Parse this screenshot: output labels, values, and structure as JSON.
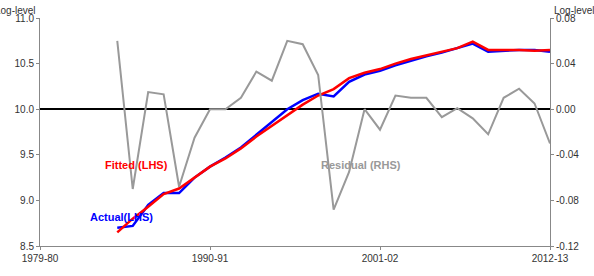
{
  "chart_data": {
    "type": "line",
    "y_label": "Log-level",
    "y2_label": "Log-level",
    "categories": [
      "1979-80",
      null,
      null,
      null,
      null,
      null,
      null,
      null,
      null,
      null,
      null,
      "1990-91",
      null,
      null,
      null,
      null,
      null,
      null,
      null,
      null,
      null,
      null,
      "2001-02",
      null,
      null,
      null,
      null,
      null,
      null,
      null,
      null,
      null,
      null,
      "2012-13"
    ],
    "series": [
      {
        "name": "Residual (RHS)",
        "color": "#999999",
        "axis": "y2",
        "values": [
          null,
          null,
          null,
          null,
          null,
          0.06,
          -0.07,
          0.015,
          0.013,
          -0.068,
          -0.025,
          0.0,
          0.0,
          0.01,
          0.033,
          0.025,
          0.06,
          0.057,
          0.03,
          -0.088,
          -0.055,
          0.0,
          -0.018,
          0.012,
          0.01,
          0.01,
          -0.007,
          0.001,
          -0.008,
          -0.022,
          0.01,
          0.018,
          0.005,
          -0.03
        ]
      },
      {
        "name": "Actual(LHS)",
        "color": "#0000ff",
        "values": [
          null,
          null,
          null,
          null,
          null,
          8.7,
          8.72,
          8.95,
          9.08,
          9.08,
          9.25,
          9.37,
          9.47,
          9.58,
          9.72,
          9.85,
          10.0,
          10.1,
          10.17,
          10.14,
          10.3,
          10.38,
          10.42,
          10.48,
          10.53,
          10.58,
          10.62,
          10.67,
          10.72,
          10.63,
          10.64,
          10.65,
          10.65,
          10.63
        ]
      },
      {
        "name": "Fitted (LHS)",
        "color": "#ff0000",
        "values": [
          null,
          null,
          null,
          null,
          null,
          8.65,
          8.8,
          8.93,
          9.07,
          9.13,
          9.25,
          9.37,
          9.46,
          9.57,
          9.7,
          9.82,
          9.94,
          10.05,
          10.15,
          10.22,
          10.34,
          10.4,
          10.44,
          10.5,
          10.55,
          10.59,
          10.63,
          10.67,
          10.74,
          10.65,
          10.65,
          10.65,
          10.64,
          10.65
        ]
      }
    ],
    "ylim": [
      8.5,
      11.0
    ],
    "yticks": [
      8.5,
      {
        "value": 9,
        "label": "9.0"
      },
      9.5,
      {
        "value": 10,
        "label": "10.0"
      },
      10.5,
      {
        "value": 11,
        "label": "11.0"
      }
    ],
    "y2lim": [
      -0.12,
      0.08
    ],
    "y2ticks": [
      -0.12,
      -0.08,
      -0.04,
      {
        "value": 0,
        "label": "0.00"
      },
      0.04,
      0.08
    ],
    "grid": false
  }
}
